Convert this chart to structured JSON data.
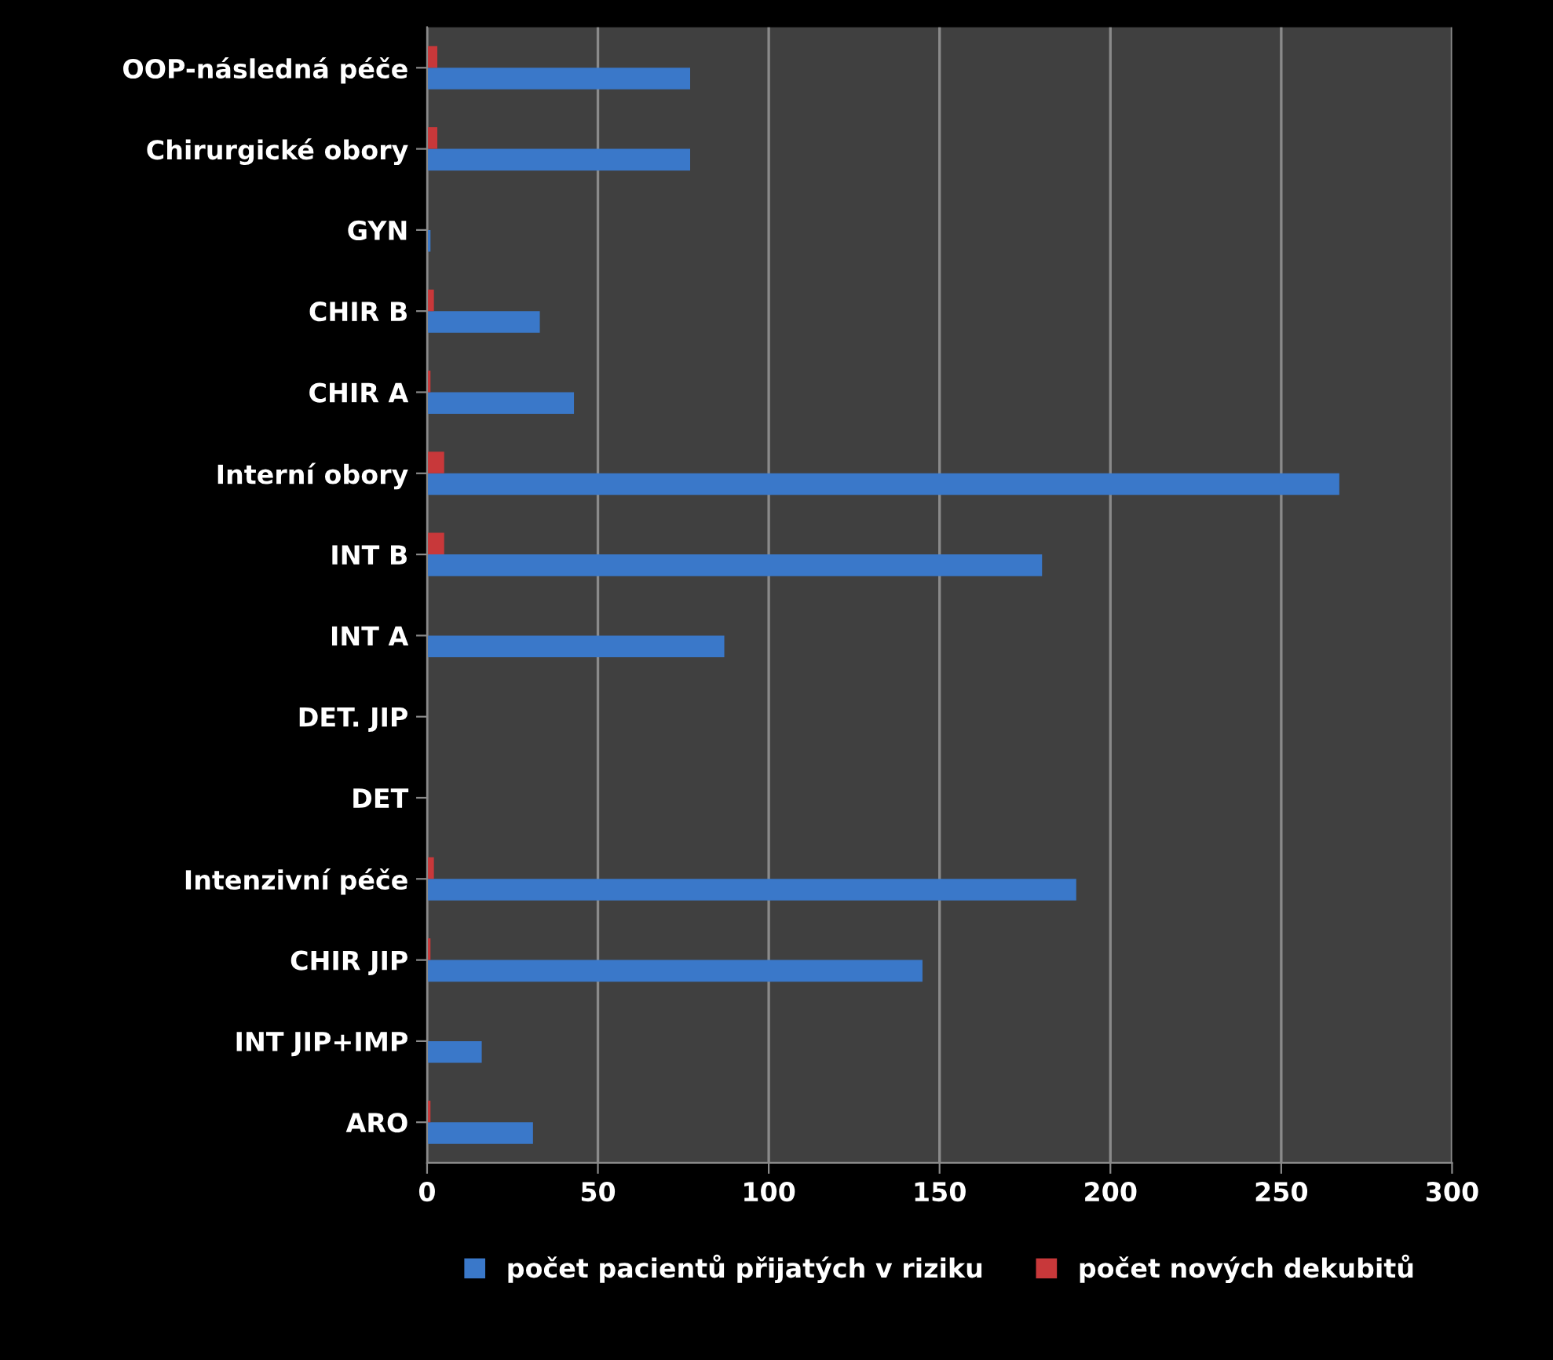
{
  "chart_data": {
    "type": "bar",
    "orientation": "horizontal",
    "categories": [
      "OOP-následná péče",
      "Chirurgické obory",
      "GYN",
      "CHIR B",
      "CHIR A",
      "Interní obory",
      "INT B",
      "INT A",
      "DET. JIP",
      "DET",
      "Intenzivní péče",
      "CHIR JIP",
      "INT JIP+IMP",
      "ARO"
    ],
    "series": [
      {
        "name": "počet pacientů přijatých v riziku",
        "color": "#3a78c9",
        "values": [
          77,
          77,
          1,
          33,
          43,
          267,
          180,
          87,
          0,
          0,
          190,
          145,
          16,
          31
        ]
      },
      {
        "name": "počet nových dekubitů",
        "color": "#c8383a",
        "values": [
          3,
          3,
          0,
          2,
          1,
          5,
          5,
          0,
          0,
          0,
          2,
          1,
          0,
          1
        ]
      }
    ],
    "xlim": [
      0,
      300
    ],
    "xticks": [
      0,
      50,
      100,
      150,
      200,
      250,
      300
    ],
    "grid": "x",
    "legend": "bottom"
  }
}
